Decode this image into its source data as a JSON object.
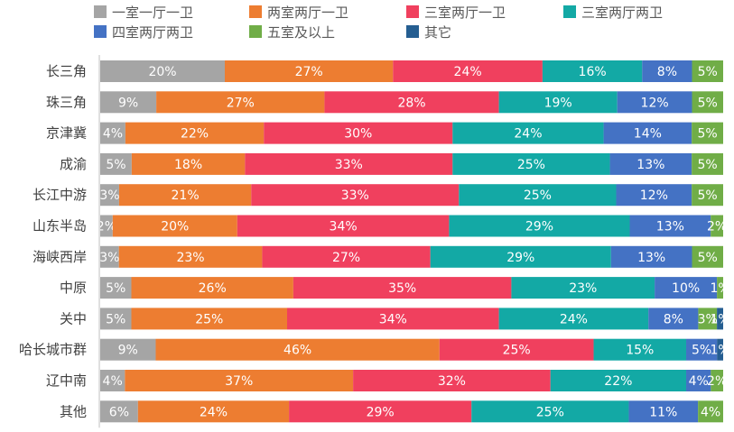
{
  "chart_data": {
    "type": "bar",
    "orientation": "horizontal",
    "stacked": true,
    "stack_mode": "percent",
    "legend_position": "top",
    "grid": false,
    "categories": [
      "长三角",
      "珠三角",
      "京津冀",
      "成渝",
      "长江中游",
      "山东半岛",
      "海峡西岸",
      "中原",
      "关中",
      "哈长城市群",
      "辽中南",
      "其他"
    ],
    "series": [
      {
        "name": "一室一厅一卫",
        "color": "#a5a5a5",
        "values": [
          20,
          9,
          4,
          5,
          3,
          2,
          3,
          5,
          5,
          9,
          4,
          6
        ]
      },
      {
        "name": "两室两厅一卫",
        "color": "#ed7d31",
        "values": [
          27,
          27,
          22,
          18,
          21,
          20,
          23,
          26,
          25,
          46,
          37,
          24
        ]
      },
      {
        "name": "三室两厅一卫",
        "color": "#f0405e",
        "values": [
          24,
          28,
          30,
          33,
          33,
          34,
          27,
          35,
          34,
          25,
          32,
          29
        ]
      },
      {
        "name": "三室两厅两卫",
        "color": "#13a9a5",
        "values": [
          16,
          19,
          24,
          25,
          25,
          29,
          29,
          23,
          24,
          15,
          22,
          25
        ]
      },
      {
        "name": "四室两厅两卫",
        "color": "#4472c4",
        "values": [
          8,
          12,
          14,
          13,
          12,
          13,
          13,
          10,
          8,
          5,
          4,
          11
        ]
      },
      {
        "name": "五室及以上",
        "color": "#70ad47",
        "values": [
          5,
          5,
          5,
          5,
          5,
          2,
          5,
          1,
          3,
          0,
          2,
          4
        ]
      },
      {
        "name": "其它",
        "color": "#255e91",
        "values": [
          0,
          0,
          0,
          0,
          0,
          0,
          0,
          0,
          1,
          1,
          0,
          0
        ]
      }
    ],
    "value_suffix": "%"
  }
}
